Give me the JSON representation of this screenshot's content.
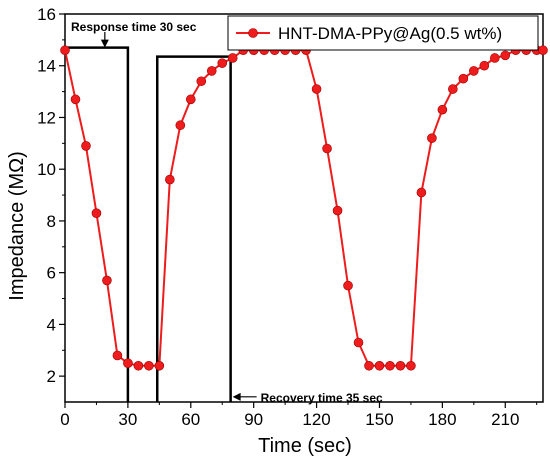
{
  "chart_data": {
    "type": "line",
    "xlabel": "Time (sec)",
    "ylabel": "Impedance (MΩ)",
    "xlim": [
      0,
      228
    ],
    "ylim": [
      1,
      16
    ],
    "xticks": [
      "0",
      "30",
      "60",
      "90",
      "120",
      "150",
      "180",
      "210"
    ],
    "yticks": [
      "2",
      "4",
      "6",
      "8",
      "10",
      "12",
      "14",
      "16"
    ],
    "xtick_values": [
      0,
      30,
      60,
      90,
      120,
      150,
      180,
      210
    ],
    "ytick_values": [
      2,
      4,
      6,
      8,
      10,
      12,
      14,
      16
    ],
    "grid": false,
    "legend_position": "top-right",
    "series": [
      {
        "name": "HNT-DMA-PPy@Ag(0.5 wt%)",
        "color": "#ee1c1c",
        "x": [
          0,
          5,
          10,
          15,
          20,
          25,
          30,
          35,
          40,
          45,
          50,
          55,
          60,
          65,
          70,
          75,
          80,
          85,
          90,
          95,
          100,
          105,
          110,
          115,
          120,
          125,
          130,
          135,
          140,
          145,
          150,
          155,
          160,
          165,
          170,
          175,
          180,
          185,
          190,
          195,
          200,
          205,
          210,
          215,
          220,
          225,
          228
        ],
        "y": [
          14.6,
          12.7,
          10.9,
          8.3,
          5.7,
          2.8,
          2.5,
          2.4,
          2.4,
          2.4,
          9.6,
          11.7,
          12.7,
          13.4,
          13.8,
          14.1,
          14.3,
          14.6,
          14.6,
          14.6,
          14.6,
          14.6,
          14.6,
          14.6,
          13.1,
          10.8,
          8.4,
          5.5,
          3.3,
          2.4,
          2.4,
          2.4,
          2.4,
          2.4,
          9.1,
          11.2,
          12.3,
          13.1,
          13.5,
          13.8,
          14.0,
          14.3,
          14.4,
          14.6,
          14.6,
          14.6,
          14.6
        ]
      }
    ],
    "annotations": [
      {
        "text": "Response time 30 sec",
        "box_x": [
          0,
          30
        ],
        "box_ymax": 14.7,
        "arrow_at_x": 19
      },
      {
        "text": "Recovery time 35 sec",
        "box_x": [
          44,
          79
        ],
        "box_ymax": 14.35,
        "arrow_at_y": 1.2
      }
    ]
  }
}
